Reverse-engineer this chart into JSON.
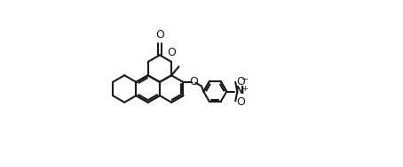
{
  "bg": "#ffffff",
  "lc": "#1a1a1a",
  "lw": 1.5,
  "figsize": [
    4.54,
    1.89
  ],
  "dpi": 100,
  "xlim": [
    -2.8,
    5.8
  ],
  "ylim": [
    -2.2,
    2.5
  ],
  "bl": 0.38
}
